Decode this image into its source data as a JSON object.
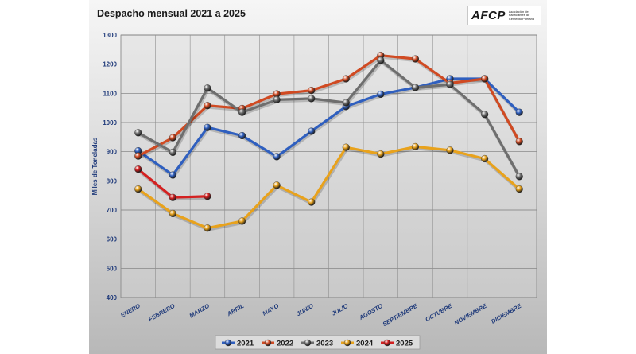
{
  "logo": {
    "brand": "AFCP",
    "subtitle": "Asociación de Fabricantes de Cemento Portland"
  },
  "chart_data": {
    "type": "line",
    "title": "Despacho mensual 2021 a 2025",
    "xlabel": "",
    "ylabel": "Miles de Toneladas",
    "ylim": [
      400,
      1300
    ],
    "yticks": [
      400,
      500,
      600,
      700,
      800,
      900,
      1000,
      1100,
      1200,
      1300
    ],
    "grid": true,
    "legend_position": "bottom",
    "categories": [
      "ENERO",
      "FEBRERO",
      "MARZO",
      "ABRIL",
      "MAYO",
      "JUNIO",
      "JULIO",
      "AGOSTO",
      "SEPTIEMBRE",
      "OCTUBRE",
      "NOVIEMBRE",
      "DICIEMBRE"
    ],
    "series": [
      {
        "name": "2021",
        "color": "#2f5fbf",
        "values": [
          903,
          820,
          983,
          955,
          883,
          970,
          1055,
          1097,
          1120,
          1150,
          1150,
          1035
        ]
      },
      {
        "name": "2022",
        "color": "#d04a22",
        "values": [
          885,
          948,
          1058,
          1048,
          1098,
          1110,
          1150,
          1230,
          1218,
          1135,
          1150,
          935
        ]
      },
      {
        "name": "2023",
        "color": "#6e6e6e",
        "values": [
          965,
          898,
          1118,
          1035,
          1078,
          1082,
          1068,
          1213,
          1120,
          1130,
          1028,
          815
        ]
      },
      {
        "name": "2024",
        "color": "#e8a21c",
        "values": [
          772,
          688,
          638,
          662,
          785,
          727,
          915,
          892,
          917,
          905,
          876,
          772
        ]
      },
      {
        "name": "2025",
        "color": "#d42020",
        "values": [
          840,
          743,
          747,
          null,
          null,
          null,
          null,
          null,
          null,
          null,
          null,
          null
        ]
      }
    ]
  }
}
